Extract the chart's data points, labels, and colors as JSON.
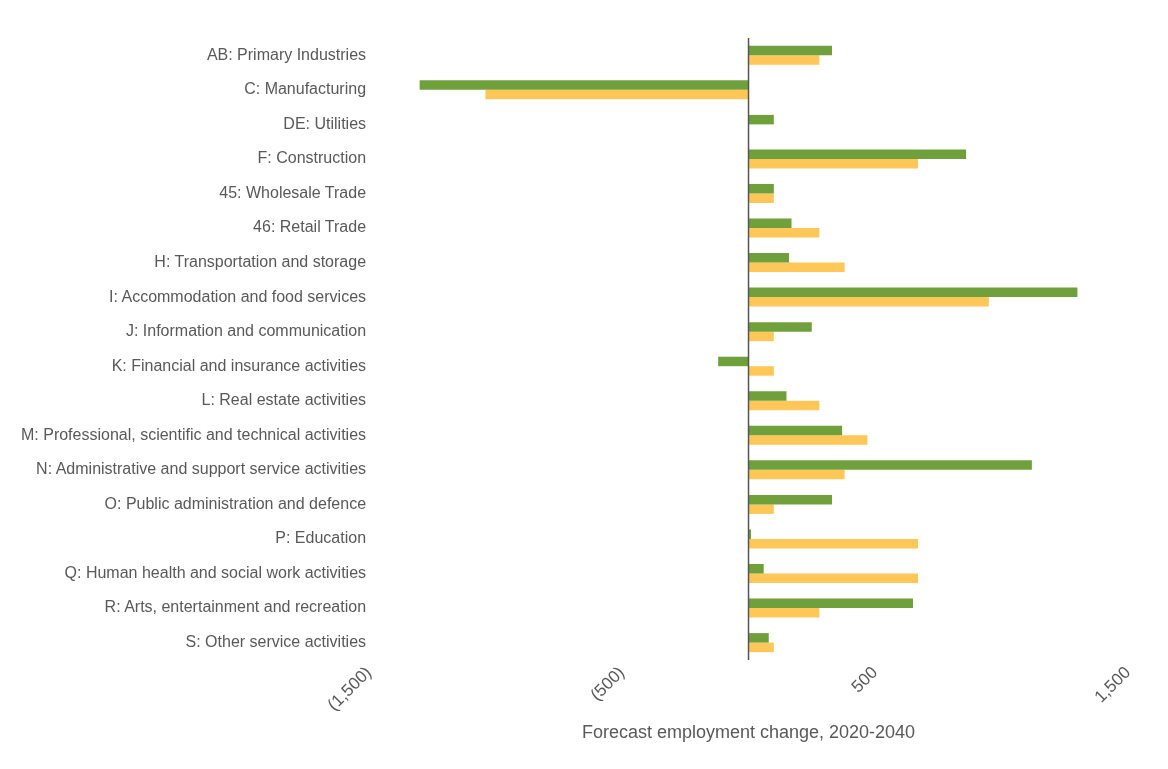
{
  "chart_data": {
    "type": "bar",
    "orientation": "horizontal",
    "xlabel": "Forecast employment change, 2020-2040",
    "categories": [
      "AB: Primary Industries",
      "C: Manufacturing",
      "DE: Utilities",
      "F: Construction",
      "45: Wholesale Trade",
      "46: Retail Trade",
      "H: Transportation and storage",
      "I: Accommodation and food services",
      "J: Information and communication",
      "K: Financial and insurance activities",
      "L: Real estate activities",
      "M: Professional, scientific and technical activities",
      "N: Administrative and support service activities",
      "O: Public administration and defence",
      "P: Education",
      "Q: Human health and social work activities",
      "R: Arts, entertainment and recreation",
      "S: Other service activities"
    ],
    "series": [
      {
        "color": "#70a03c",
        "values": [
          330,
          -1300,
          100,
          860,
          100,
          170,
          160,
          1300,
          250,
          -120,
          150,
          370,
          1120,
          330,
          10,
          60,
          650,
          80
        ]
      },
      {
        "color": "#ffc757",
        "values": [
          280,
          -1040,
          0,
          670,
          100,
          280,
          380,
          950,
          100,
          100,
          280,
          470,
          380,
          100,
          670,
          670,
          280,
          100
        ]
      }
    ],
    "xlim": [
      -1500,
      1500
    ],
    "xticks": [
      {
        "value": -1500,
        "label": "(1,500)"
      },
      {
        "value": -500,
        "label": "(500)"
      },
      {
        "value": 500,
        "label": "500"
      },
      {
        "value": 1500,
        "label": "1,500"
      }
    ],
    "grid": false,
    "legend": false
  }
}
